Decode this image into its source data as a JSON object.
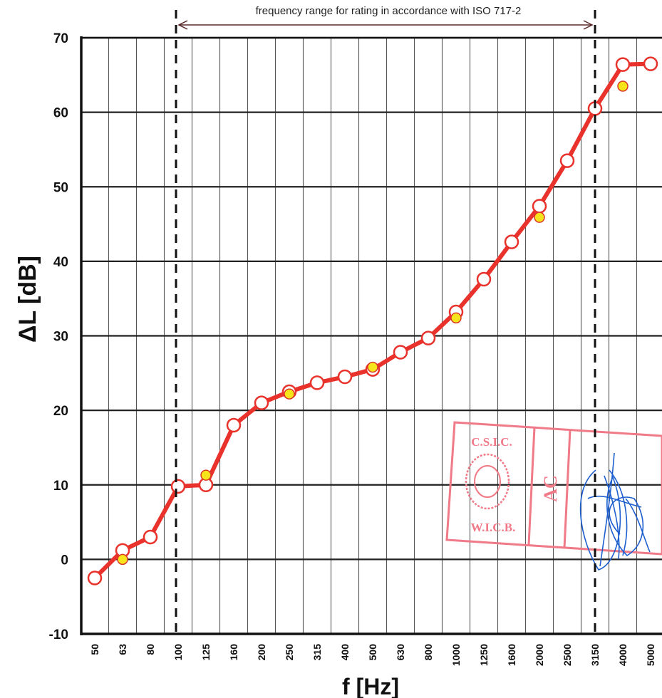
{
  "chart_data": {
    "type": "line",
    "title": "",
    "xlabel": "f [Hz]",
    "ylabel": "ΔL [dB]",
    "ylim": [
      -10,
      70
    ],
    "yticks": [
      -10,
      0,
      10,
      20,
      30,
      40,
      50,
      60,
      70
    ],
    "categories": [
      "50",
      "63",
      "80",
      "100",
      "125",
      "160",
      "200",
      "250",
      "315",
      "400",
      "500",
      "630",
      "800",
      "1000",
      "1250",
      "1600",
      "2000",
      "2500",
      "3150",
      "4000",
      "5000"
    ],
    "grid": true,
    "series": [
      {
        "values": [
          -2.5,
          1.2,
          3.0,
          9.8,
          10.0,
          18.0,
          21.0,
          22.5,
          23.7,
          24.5,
          25.5,
          27.8,
          29.7,
          33.2,
          37.6,
          42.6,
          47.4,
          53.5,
          60.5,
          66.4,
          66.5
        ],
        "color": "#e8322b",
        "marker": "open-circle"
      },
      {
        "values": [
          null,
          0.0,
          null,
          null,
          11.3,
          null,
          null,
          22.2,
          null,
          null,
          25.8,
          null,
          null,
          32.4,
          null,
          null,
          45.9,
          null,
          null,
          63.5,
          null
        ],
        "color": "#f6e51b",
        "marker": "yellow-dot"
      }
    ],
    "annotations": [
      {
        "text": "frequency range for rating in accordance with ISO 717-2",
        "from": "100",
        "to": "3150"
      }
    ]
  },
  "stamp": {
    "top_text": "C.S.I.C.",
    "bottom_text": "W.I.C.B.",
    "side_text": "AC",
    "color": "#f07a88"
  },
  "signature": {
    "color": "#1e5fd0"
  }
}
